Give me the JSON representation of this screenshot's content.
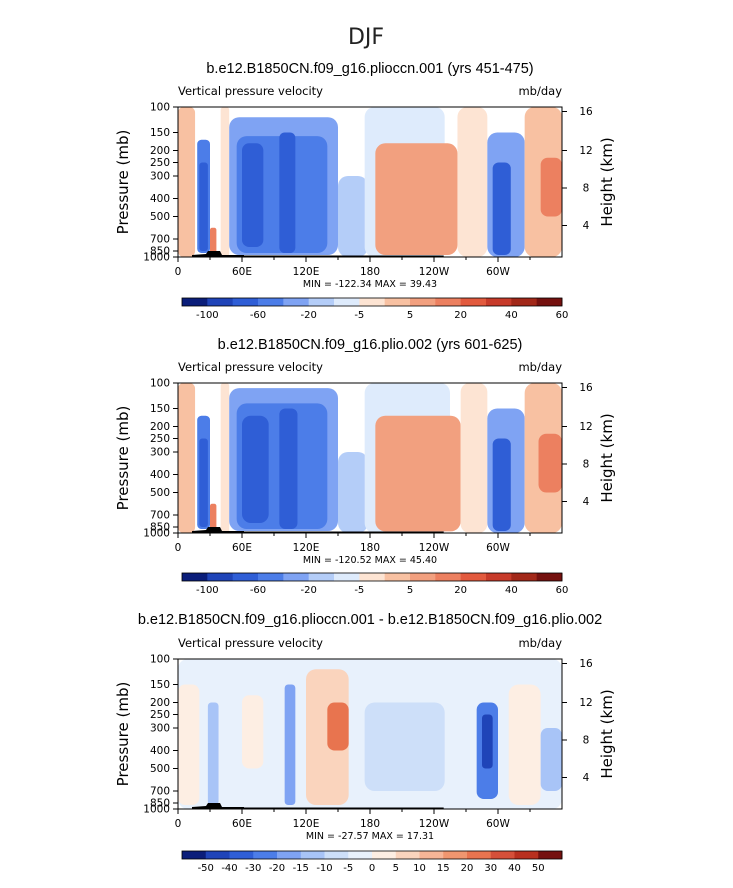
{
  "figure": {
    "title": "DJF"
  },
  "chart_data": [
    {
      "type": "heatmap",
      "title": "b.e12.B1850CN.f09_g16.plioccn.001 (yrs 451-475)",
      "left_label": "Vertical pressure velocity",
      "right_label": "mb/day",
      "ylabel": "Pressure (mb)",
      "y2label": "Height (km)",
      "x_ticks": [
        "0",
        "60E",
        "120E",
        "180",
        "120W",
        "60W"
      ],
      "y_ticks": [
        "100",
        "150",
        "200",
        "250",
        "300",
        "400",
        "500",
        "700",
        "850",
        "1000"
      ],
      "y2_ticks": [
        "16",
        "12",
        "8",
        "4"
      ],
      "stats": "MIN = -122.34   MAX =  39.43",
      "colorbar_labels": [
        "-100",
        "-60",
        "-20",
        "-5",
        "5",
        "20",
        "40",
        "60"
      ],
      "colorbar_colors": [
        "#0b1e7a",
        "#1f44b8",
        "#2f5ed6",
        "#4c7de8",
        "#7fa3f3",
        "#b4cdf8",
        "#deebfc",
        "#fde4d3",
        "#f8c1a2",
        "#f2a07f",
        "#ec8060",
        "#e25a3e",
        "#c73b2a",
        "#a22819",
        "#75110f"
      ],
      "regions": [
        {
          "lon": [
            0,
            16
          ],
          "p": [
            100,
            1000
          ],
          "level": 8
        },
        {
          "lon": [
            18,
            30
          ],
          "p": [
            170,
            900
          ],
          "level": 3
        },
        {
          "lon": [
            20,
            28
          ],
          "p": [
            250,
            850
          ],
          "level": 2
        },
        {
          "lon": [
            30,
            36
          ],
          "p": [
            600,
            1000
          ],
          "level": 10
        },
        {
          "lon": [
            40,
            48
          ],
          "p": [
            100,
            1000
          ],
          "level": 7
        },
        {
          "lon": [
            48,
            150
          ],
          "p": [
            120,
            950
          ],
          "level": 4
        },
        {
          "lon": [
            55,
            140
          ],
          "p": [
            160,
            900
          ],
          "level": 3
        },
        {
          "lon": [
            60,
            80
          ],
          "p": [
            180,
            800
          ],
          "level": 2
        },
        {
          "lon": [
            95,
            110
          ],
          "p": [
            150,
            900
          ],
          "level": 2
        },
        {
          "lon": [
            150,
            178
          ],
          "p": [
            300,
            1000
          ],
          "level": 5
        },
        {
          "lon": [
            175,
            250
          ],
          "p": [
            100,
            1000
          ],
          "level": 6
        },
        {
          "lon": [
            185,
            262
          ],
          "p": [
            180,
            950
          ],
          "level": 9
        },
        {
          "lon": [
            262,
            290
          ],
          "p": [
            100,
            1000
          ],
          "level": 7
        },
        {
          "lon": [
            290,
            325
          ],
          "p": [
            150,
            1000
          ],
          "level": 4
        },
        {
          "lon": [
            295,
            312
          ],
          "p": [
            250,
            950
          ],
          "level": 2
        },
        {
          "lon": [
            325,
            360
          ],
          "p": [
            100,
            1000
          ],
          "level": 8
        },
        {
          "lon": [
            340,
            360
          ],
          "p": [
            230,
            500
          ],
          "level": 10
        }
      ]
    },
    {
      "type": "heatmap",
      "title": "b.e12.B1850CN.f09_g16.plio.002 (yrs 601-625)",
      "left_label": "Vertical pressure velocity",
      "right_label": "mb/day",
      "ylabel": "Pressure (mb)",
      "y2label": "Height (km)",
      "x_ticks": [
        "0",
        "60E",
        "120E",
        "180",
        "120W",
        "60W"
      ],
      "y_ticks": [
        "100",
        "150",
        "200",
        "250",
        "300",
        "400",
        "500",
        "700",
        "850",
        "1000"
      ],
      "y2_ticks": [
        "16",
        "12",
        "8",
        "4"
      ],
      "stats": "MIN = -120.52   MAX =  45.40",
      "colorbar_labels": [
        "-100",
        "-60",
        "-20",
        "-5",
        "5",
        "20",
        "40",
        "60"
      ],
      "colorbar_colors": [
        "#0b1e7a",
        "#1f44b8",
        "#2f5ed6",
        "#4c7de8",
        "#7fa3f3",
        "#b4cdf8",
        "#deebfc",
        "#fde4d3",
        "#f8c1a2",
        "#f2a07f",
        "#ec8060",
        "#e25a3e",
        "#c73b2a",
        "#a22819",
        "#75110f"
      ],
      "regions": [
        {
          "lon": [
            0,
            16
          ],
          "p": [
            100,
            1000
          ],
          "level": 8
        },
        {
          "lon": [
            18,
            30
          ],
          "p": [
            170,
            900
          ],
          "level": 3
        },
        {
          "lon": [
            20,
            28
          ],
          "p": [
            250,
            850
          ],
          "level": 2
        },
        {
          "lon": [
            30,
            36
          ],
          "p": [
            600,
            1000
          ],
          "level": 10
        },
        {
          "lon": [
            40,
            48
          ],
          "p": [
            100,
            1000
          ],
          "level": 7
        },
        {
          "lon": [
            48,
            150
          ],
          "p": [
            110,
            950
          ],
          "level": 4
        },
        {
          "lon": [
            55,
            140
          ],
          "p": [
            140,
            900
          ],
          "level": 3
        },
        {
          "lon": [
            60,
            85
          ],
          "p": [
            170,
            800
          ],
          "level": 2
        },
        {
          "lon": [
            95,
            112
          ],
          "p": [
            150,
            900
          ],
          "level": 2
        },
        {
          "lon": [
            150,
            178
          ],
          "p": [
            300,
            1000
          ],
          "level": 5
        },
        {
          "lon": [
            175,
            255
          ],
          "p": [
            100,
            1000
          ],
          "level": 6
        },
        {
          "lon": [
            185,
            265
          ],
          "p": [
            170,
            960
          ],
          "level": 9
        },
        {
          "lon": [
            265,
            290
          ],
          "p": [
            100,
            1000
          ],
          "level": 7
        },
        {
          "lon": [
            290,
            325
          ],
          "p": [
            150,
            1000
          ],
          "level": 4
        },
        {
          "lon": [
            295,
            312
          ],
          "p": [
            250,
            950
          ],
          "level": 2
        },
        {
          "lon": [
            325,
            360
          ],
          "p": [
            100,
            1000
          ],
          "level": 8
        },
        {
          "lon": [
            338,
            360
          ],
          "p": [
            230,
            500
          ],
          "level": 10
        }
      ]
    },
    {
      "type": "heatmap",
      "title": "b.e12.B1850CN.f09_g16.plioccn.001 - b.e12.B1850CN.f09_g16.plio.002",
      "left_label": "Vertical pressure velocity",
      "right_label": "mb/day",
      "ylabel": "Pressure (mb)",
      "y2label": "Height (km)",
      "x_ticks": [
        "0",
        "60E",
        "120E",
        "180",
        "120W",
        "60W"
      ],
      "y_ticks": [
        "100",
        "150",
        "200",
        "250",
        "300",
        "400",
        "500",
        "700",
        "850",
        "1000"
      ],
      "y2_ticks": [
        "16",
        "12",
        "8",
        "4"
      ],
      "stats": "MIN = -27.57   MAX =  17.31",
      "colorbar_labels": [
        "-50",
        "-40",
        "-30",
        "-20",
        "-15",
        "-10",
        "-5",
        "0",
        "5",
        "10",
        "15",
        "20",
        "30",
        "40",
        "50"
      ],
      "colorbar_colors": [
        "#0b1e7a",
        "#1f44b8",
        "#2f5ed6",
        "#4c7de8",
        "#7fa3f3",
        "#a8c4f7",
        "#cddff9",
        "#e8f1fc",
        "#fdeee3",
        "#fad4bd",
        "#f6b597",
        "#f0966f",
        "#e8744f",
        "#d5503a",
        "#b8301f",
        "#75110f"
      ],
      "regions": [
        {
          "lon": [
            0,
            360
          ],
          "p": [
            100,
            1000
          ],
          "level": 7
        },
        {
          "lon": [
            0,
            20
          ],
          "p": [
            150,
            900
          ],
          "level": 8
        },
        {
          "lon": [
            28,
            38
          ],
          "p": [
            200,
            900
          ],
          "level": 5
        },
        {
          "lon": [
            60,
            80
          ],
          "p": [
            180,
            500
          ],
          "level": 8
        },
        {
          "lon": [
            100,
            110
          ],
          "p": [
            150,
            900
          ],
          "level": 4
        },
        {
          "lon": [
            120,
            160
          ],
          "p": [
            120,
            900
          ],
          "level": 9
        },
        {
          "lon": [
            140,
            160
          ],
          "p": [
            200,
            400
          ],
          "level": 12
        },
        {
          "lon": [
            175,
            250
          ],
          "p": [
            200,
            700
          ],
          "level": 6
        },
        {
          "lon": [
            280,
            300
          ],
          "p": [
            200,
            800
          ],
          "level": 3
        },
        {
          "lon": [
            285,
            295
          ],
          "p": [
            250,
            500
          ],
          "level": 1
        },
        {
          "lon": [
            310,
            340
          ],
          "p": [
            150,
            900
          ],
          "level": 8
        },
        {
          "lon": [
            340,
            360
          ],
          "p": [
            300,
            700
          ],
          "level": 5
        }
      ]
    }
  ]
}
